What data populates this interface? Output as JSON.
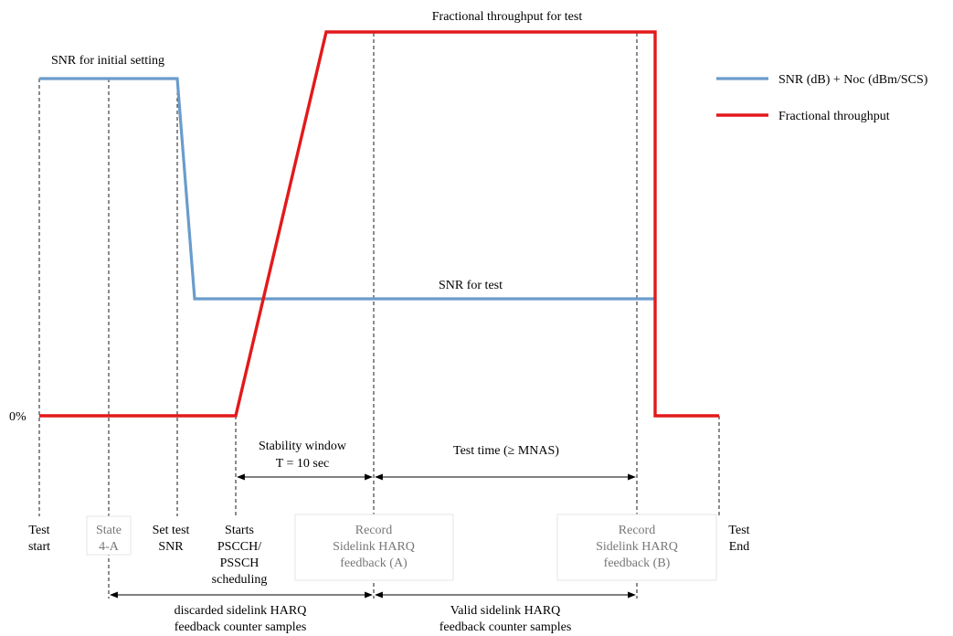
{
  "colors": {
    "snr_line": "#6a9ccb",
    "throughput_line": "#e3191b",
    "dashed_marker": "#000000",
    "box_text_grey": "#777777"
  },
  "levels": {
    "zero_label": "0%"
  },
  "curve_labels": {
    "snr_initial": "SNR for initial setting",
    "snr_test": "SNR for test",
    "throughput_test": "Fractional throughput for test"
  },
  "legend": {
    "items": [
      {
        "label": "SNR (dB) + Noc (dBm/SCS)",
        "color": "#6a9ccb"
      },
      {
        "label": "Fractional throughput",
        "color": "#e3191b"
      }
    ]
  },
  "events": {
    "test_start": [
      "Test",
      "start"
    ],
    "state_4a": [
      "State",
      "4-A"
    ],
    "set_test_snr": [
      "Set test",
      "SNR"
    ],
    "starts_scheduling": [
      "Starts",
      "PSCCH/",
      "PSSCH",
      "scheduling"
    ],
    "record_a": [
      "Record",
      "Sidelink HARQ",
      "feedback (A)"
    ],
    "record_b": [
      "Record",
      "Sidelink HARQ",
      "feedback (B)"
    ],
    "test_end": [
      "Test",
      "End"
    ]
  },
  "intervals": {
    "stability_window": [
      "Stability window",
      "T = 10 sec"
    ],
    "test_time": "Test time (≥ MNAS)",
    "discarded": [
      "discarded sidelink HARQ",
      "feedback counter samples"
    ],
    "valid": [
      "Valid sidelink HARQ",
      "feedback counter samples"
    ]
  }
}
